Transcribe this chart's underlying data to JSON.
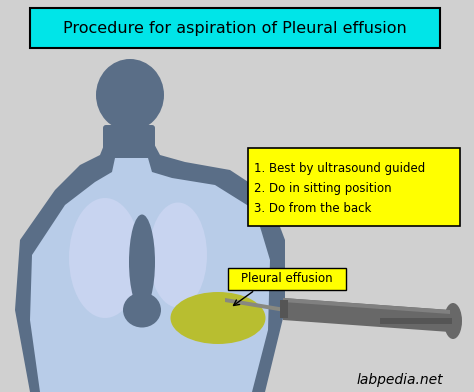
{
  "bg_color": "#d0d0d0",
  "title_text": "Procedure for aspiration of Pleural effusion",
  "title_box_color": "#00e5e8",
  "title_box_edge": "#000000",
  "title_fontsize": 11.5,
  "body_dark_color": "#5a6e87",
  "body_light_color": "#b8cce8",
  "lung_color": "#c8d4f0",
  "pleural_fluid_color": "#b8be30",
  "syringe_color": "#686868",
  "needle_color": "#888880",
  "yellow_box_color": "#ffff00",
  "yellow_box_edge": "#000000",
  "annotation_text": "1. Best by ultrasound guided\n2. Do in sitting position\n3. Do from the back",
  "pleural_label": "Pleural effusion",
  "watermark": "labpedia.net",
  "watermark_fontsize": 10
}
